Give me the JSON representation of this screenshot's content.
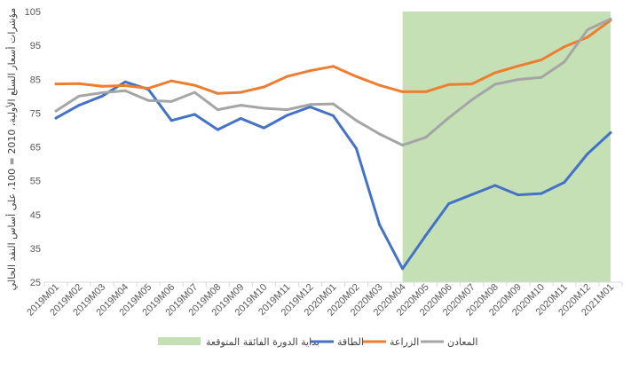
{
  "chart_data": {
    "type": "line",
    "ylabel": "مؤشرات أسعار السلع الأولية، 2010 = 100، على أساس النقد الحالي",
    "ylim": [
      25,
      105
    ],
    "yticks": [
      25,
      35,
      45,
      55,
      65,
      75,
      85,
      95,
      105
    ],
    "grid": false,
    "legend_position": "bottom",
    "categories": [
      "2019M01",
      "2019M02",
      "2019M03",
      "2019M04",
      "2019M05",
      "2019M06",
      "2019M07",
      "2019M08",
      "2019M09",
      "2019M10",
      "2019M11",
      "2019M12",
      "2020M01",
      "2020M02",
      "2020M03",
      "2020M04",
      "2020M05",
      "2020M06",
      "2020M07",
      "2020M08",
      "2020M09",
      "2020M10",
      "2020M11",
      "2020M12",
      "2021M01"
    ],
    "shaded_region": {
      "label": "بداية الدورة الفائقة المتوقعة",
      "from": "2020M04",
      "to": "2021M01",
      "color": "#c5e0b4"
    },
    "series": [
      {
        "name": "الطاقة",
        "color": "#4472c4",
        "values": [
          73.5,
          77.3,
          80.0,
          84.2,
          82.0,
          72.8,
          74.6,
          70.1,
          73.4,
          70.6,
          74.3,
          76.8,
          74.2,
          64.5,
          42.0,
          29.0,
          38.8,
          48.2,
          50.9,
          53.6,
          50.8,
          51.2,
          54.5,
          62.9,
          69.2
        ]
      },
      {
        "name": "الزراعة",
        "color": "#ed7d31",
        "values": [
          83.6,
          83.7,
          82.9,
          83.1,
          82.3,
          84.5,
          83.2,
          80.8,
          81.1,
          82.7,
          85.8,
          87.5,
          88.8,
          85.8,
          83.2,
          81.3,
          81.3,
          83.4,
          83.6,
          86.9,
          88.9,
          90.7,
          94.6,
          97.4,
          102.4
        ]
      },
      {
        "name": "المعادن",
        "color": "#a5a5a5",
        "values": [
          75.6,
          80.0,
          81.0,
          81.6,
          78.7,
          78.4,
          81.1,
          76.0,
          77.3,
          76.4,
          76.0,
          77.5,
          77.7,
          72.8,
          68.8,
          65.5,
          67.8,
          73.6,
          78.9,
          83.5,
          84.9,
          85.5,
          90.1,
          99.6,
          102.8
        ]
      }
    ]
  }
}
